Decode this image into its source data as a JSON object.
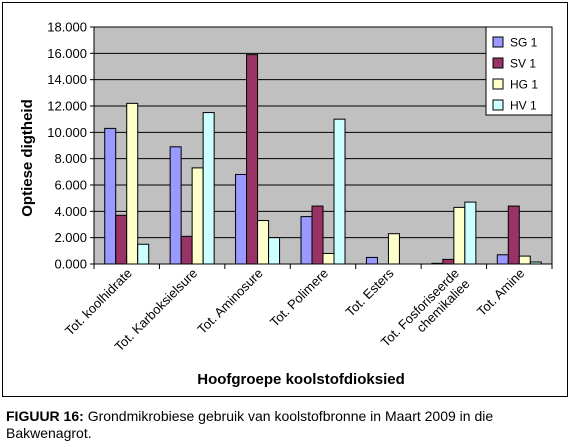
{
  "chart_data": {
    "type": "bar",
    "title": "",
    "xlabel": "Hoofgroepe koolstofdioksied",
    "ylabel": "Optiese digtheid",
    "ylim": [
      0,
      18
    ],
    "yticks": [
      "0.000",
      "2.000",
      "4.000",
      "6.000",
      "8.000",
      "10.000",
      "12.000",
      "14.000",
      "16.000",
      "18.000"
    ],
    "categories": [
      [
        "Tot. koolhidrate"
      ],
      [
        "Tot. Karboksielsure"
      ],
      [
        "Tot. Aminosure"
      ],
      [
        "Tot. Polimere"
      ],
      [
        "Tot. Esters"
      ],
      [
        "Tot. Fosforiseerde",
        "chemikaliee"
      ],
      [
        "Tot. Amine"
      ]
    ],
    "series": [
      {
        "name": "SG 1",
        "color": "#9999ff",
        "values": [
          10.3,
          8.9,
          6.8,
          3.6,
          0.5,
          0.05,
          0.7
        ]
      },
      {
        "name": "SV 1",
        "color": "#993366",
        "values": [
          3.7,
          2.1,
          15.9,
          4.4,
          0.0,
          0.35,
          4.4
        ]
      },
      {
        "name": "HG 1",
        "color": "#ffffcc",
        "values": [
          12.2,
          7.3,
          3.3,
          0.8,
          2.3,
          4.3,
          0.6
        ]
      },
      {
        "name": "HV 1",
        "color": "#ccffff",
        "values": [
          1.5,
          11.5,
          2.0,
          11.0,
          0.0,
          4.7,
          0.15
        ]
      }
    ],
    "grid": true,
    "plot_background": "#c0c0c0",
    "legend_position": "top-right"
  },
  "caption": {
    "label": "FIGUUR 16:",
    "text": "Grondmikrobiese gebruik van koolstofbronne in Maart 2009 in die Bakwenagrot."
  }
}
